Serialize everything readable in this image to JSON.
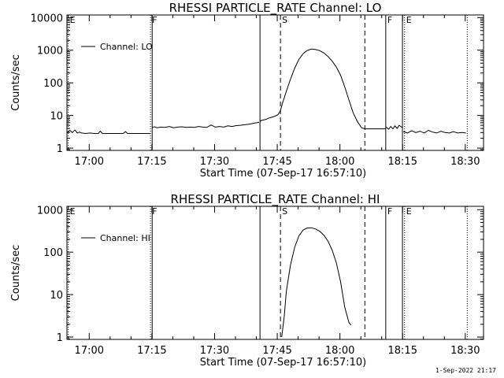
{
  "footer": {
    "timestamp": "1-Sep-2022 21:17"
  },
  "chart_data": [
    {
      "type": "line",
      "title": "RHESSI PARTICLE_RATE Channel: LO",
      "xlabel": "Start Time (07-Sep-17 16:57:10)",
      "ylabel": "Counts/sec",
      "x_ticks": [
        "17:00",
        "17:15",
        "17:30",
        "17:45",
        "18:00",
        "18:15",
        "18:30"
      ],
      "x_tick_minutes": [
        2.833,
        17.833,
        32.833,
        47.833,
        62.833,
        77.833,
        92.833
      ],
      "xlim_minutes": [
        -2.5,
        97.2
      ],
      "y_scale": "log",
      "ylim": [
        0.85,
        12000
      ],
      "y_ticks": [
        1,
        10,
        100,
        1000,
        10000
      ],
      "y_tick_labels": [
        "1",
        "10",
        "100",
        "1000",
        "10000"
      ],
      "legend": {
        "position": "top-left",
        "entries": [
          "Channel: LO"
        ]
      },
      "markers": [
        {
          "label": "E",
          "minute": -2.2,
          "style": "dotted"
        },
        {
          "label": "F",
          "minute": 17.5,
          "style": "dotted"
        },
        {
          "label": "",
          "minute": 17.9,
          "style": "solid"
        },
        {
          "label": "",
          "minute": 43.7,
          "style": "solid"
        },
        {
          "label": "S",
          "minute": 48.6,
          "style": "dashed"
        },
        {
          "label": "",
          "minute": 68.8,
          "style": "dashed"
        },
        {
          "label": "F",
          "minute": 73.8,
          "style": "solid"
        },
        {
          "label": "",
          "minute": 77.8,
          "style": "solid"
        },
        {
          "label": "E",
          "minute": 78.3,
          "style": "dotted"
        },
        {
          "label": "",
          "minute": 93.3,
          "style": "dotted"
        }
      ],
      "series": [
        {
          "name": "Channel: LO",
          "segments": [
            {
              "x": [
                -2.4,
                -1.8,
                -1.2,
                -0.6,
                0,
                0.5,
                1,
                2,
                3,
                4,
                5,
                5.5,
                6,
                7,
                8,
                9,
                10,
                11,
                11.5,
                12,
                13,
                14,
                15,
                16,
                17,
                17.5
              ],
              "y": [
                3,
                3.5,
                3,
                3.6,
                2.9,
                3.1,
                2.9,
                2.8,
                2.9,
                2.8,
                2.8,
                3.3,
                2.8,
                2.8,
                2.8,
                2.8,
                2.8,
                2.8,
                3.2,
                2.8,
                2.8,
                2.8,
                2.8,
                2.8,
                2.8,
                2.8
              ]
            },
            {
              "x": [
                17.9,
                18.5,
                19,
                20,
                21,
                22,
                23,
                24,
                25,
                26,
                27,
                28,
                29,
                30,
                31,
                32,
                33,
                34,
                35,
                36,
                37,
                38,
                39,
                40,
                41,
                42,
                43,
                43.5
              ],
              "y": [
                4.3,
                4.5,
                4.2,
                4.4,
                4.3,
                4.6,
                4.2,
                4.4,
                4.5,
                4.3,
                4.4,
                4.3,
                4.6,
                4.4,
                4.3,
                5.1,
                4.4,
                4.6,
                4.4,
                4.8,
                4.6,
                4.9,
                5,
                5.2,
                5.4,
                5.7,
                6,
                6.2
              ]
            },
            {
              "x": [
                43.7,
                44,
                45,
                46,
                47,
                48,
                48.6,
                49,
                50,
                51,
                52,
                53,
                54,
                55,
                56,
                57,
                58,
                59,
                60,
                61,
                62,
                63,
                64,
                65,
                66,
                67,
                68,
                68.8,
                69,
                70,
                71,
                72,
                73,
                73.8
              ],
              "y": [
                6.5,
                7,
                7.5,
                8.5,
                9.2,
                10.5,
                14,
                22,
                55,
                130,
                280,
                520,
                780,
                980,
                1080,
                1050,
                970,
                820,
                640,
                460,
                300,
                170,
                75,
                30,
                12,
                6.5,
                4.2,
                3.9,
                3.9,
                3.9,
                3.9,
                3.9,
                3.9,
                3.9
              ]
            },
            {
              "x": [
                73.8,
                74.5,
                75,
                75.5,
                76,
                76.5,
                77,
                77.8
              ],
              "y": [
                4.5,
                3.8,
                4.6,
                3.9,
                4.8,
                4,
                5,
                4.2
              ]
            },
            {
              "x": [
                78,
                79,
                80,
                81,
                82,
                83,
                84,
                85,
                86,
                87,
                88,
                89,
                90,
                91,
                92,
                93
              ],
              "y": [
                3.2,
                2.9,
                3.4,
                3,
                3.3,
                2.9,
                3.5,
                3.1,
                2.9,
                3.3,
                3,
                2.9,
                3.2,
                2.9,
                3,
                2.9
              ]
            }
          ]
        }
      ]
    },
    {
      "type": "line",
      "title": "RHESSI PARTICLE_RATE Channel: HI",
      "xlabel": "Start Time (07-Sep-17 16:57:10)",
      "ylabel": "Counts/sec",
      "x_ticks": [
        "17:00",
        "17:15",
        "17:30",
        "17:45",
        "18:00",
        "18:15",
        "18:30"
      ],
      "x_tick_minutes": [
        2.833,
        17.833,
        32.833,
        47.833,
        62.833,
        77.833,
        92.833
      ],
      "xlim_minutes": [
        -2.5,
        97.2
      ],
      "y_scale": "log",
      "ylim": [
        0.88,
        1200
      ],
      "y_ticks": [
        1,
        10,
        100,
        1000
      ],
      "y_tick_labels": [
        "1",
        "10",
        "100",
        "1000"
      ],
      "legend": {
        "position": "top-left",
        "entries": [
          "Channel: HI"
        ]
      },
      "markers": [
        {
          "label": "E",
          "minute": -2.2,
          "style": "dotted"
        },
        {
          "label": "F",
          "minute": 17.5,
          "style": "dotted"
        },
        {
          "label": "",
          "minute": 17.9,
          "style": "solid"
        },
        {
          "label": "",
          "minute": 43.7,
          "style": "solid"
        },
        {
          "label": "S",
          "minute": 48.6,
          "style": "dashed"
        },
        {
          "label": "",
          "minute": 68.8,
          "style": "dashed"
        },
        {
          "label": "F",
          "minute": 73.8,
          "style": "solid"
        },
        {
          "label": "",
          "minute": 77.8,
          "style": "solid"
        },
        {
          "label": "E",
          "minute": 78.3,
          "style": "dotted"
        },
        {
          "label": "",
          "minute": 93.3,
          "style": "dotted"
        }
      ],
      "series": [
        {
          "name": "Channel: HI",
          "segments": [
            {
              "x": [
                48.9,
                49.5,
                50,
                51,
                52,
                53,
                54,
                55,
                56,
                57,
                58,
                59,
                60,
                61,
                62,
                63,
                64,
                65,
                65.5
              ],
              "y": [
                1,
                3,
                12,
                50,
                130,
                240,
                330,
                370,
                375,
                350,
                310,
                250,
                180,
                110,
                55,
                20,
                5,
                2.2,
                1.9
              ]
            }
          ]
        }
      ]
    }
  ]
}
